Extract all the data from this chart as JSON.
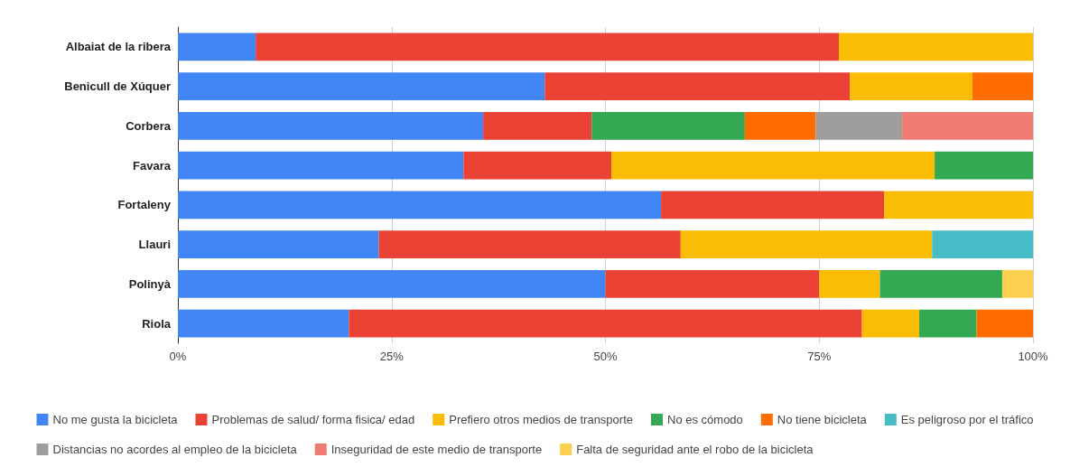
{
  "chart_data": {
    "type": "bar",
    "orientation": "horizontal",
    "stacked": true,
    "grid": "x",
    "legend": "bottom",
    "categories": [
      "Albaiat de la ribera",
      "Benicull de Xúquer",
      "Corbera",
      "Favara",
      "Fortaleny",
      "Llauri",
      "Polinyà",
      "Riola"
    ],
    "xlim": [
      0,
      100
    ],
    "xticks": [
      {
        "value": 0,
        "label": "0%"
      },
      {
        "value": 25,
        "label": "25%"
      },
      {
        "value": 50,
        "label": "50%"
      },
      {
        "value": 75,
        "label": "75%"
      },
      {
        "value": 100,
        "label": "100%"
      }
    ],
    "series": [
      {
        "name": "No me gusta la bicicleta",
        "color": "#4285f4",
        "values": [
          9.1,
          42.9,
          35.7,
          33.4,
          56.5,
          23.5,
          50,
          20
        ]
      },
      {
        "name": "Problemas de salud/ forma fisica/ edad",
        "color": "#ea4335",
        "values": [
          68.2,
          35.7,
          12.7,
          17.3,
          26.1,
          35.3,
          25,
          60
        ]
      },
      {
        "name": "Prefiero otros medios de transporte",
        "color": "#fbbc04",
        "values": [
          22.7,
          14.3,
          null,
          37.8,
          17.4,
          29.4,
          7.1,
          6.7
        ]
      },
      {
        "name": "No es cómodo",
        "color": "#34a853",
        "values": [
          null,
          null,
          17.9,
          11.5,
          null,
          null,
          14.3,
          6.7
        ]
      },
      {
        "name": "No tiene bicicleta",
        "color": "#ff6d01",
        "values": [
          null,
          7.1,
          8.3,
          null,
          null,
          null,
          null,
          6.7
        ]
      },
      {
        "name": "Es peligroso por el tráfico",
        "color": "#46bdc6",
        "values": [
          null,
          null,
          null,
          null,
          null,
          11.8,
          null,
          null
        ]
      },
      {
        "name": "Distancias no acordes al empleo de la bicicleta",
        "color": "#9e9e9e",
        "values": [
          null,
          null,
          10.1,
          null,
          null,
          null,
          null,
          null
        ]
      },
      {
        "name": "Inseguridad de este medio de transporte",
        "color": "#f07b72",
        "values": [
          null,
          null,
          15.3,
          null,
          null,
          null,
          null,
          null
        ]
      },
      {
        "name": "Falta de seguridad ante el robo de la bicicleta",
        "color": "#fcd04f",
        "values": [
          null,
          null,
          null,
          null,
          null,
          null,
          3.6,
          null
        ]
      }
    ]
  }
}
